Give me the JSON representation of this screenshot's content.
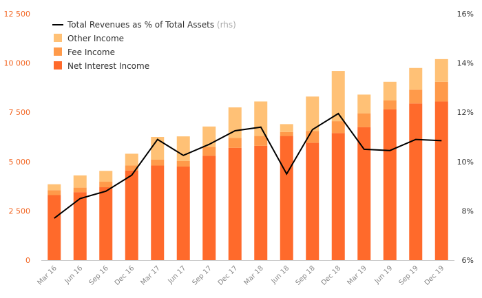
{
  "chart_data": {
    "type": "bar",
    "stacked": true,
    "categories": [
      "Mar 16",
      "Jun 16",
      "Sep 16",
      "Dec 16",
      "Mar 17",
      "Jun 17",
      "Sep 17",
      "Dec 17",
      "Mar 18",
      "Jun 18",
      "Sep 18",
      "Dec 18",
      "Mar 19",
      "Jun 19",
      "Sep 19",
      "Dec 19"
    ],
    "series": [
      {
        "name": "Net Interest Income",
        "color": "#ff6a2b",
        "values": [
          3300,
          3450,
          3700,
          4550,
          4800,
          4750,
          5300,
          5700,
          5800,
          6300,
          5950,
          6450,
          6750,
          7650,
          7950,
          8050
        ]
      },
      {
        "name": "Fee Income",
        "color": "#ff9a4a",
        "values": [
          250,
          230,
          280,
          250,
          300,
          280,
          450,
          500,
          500,
          200,
          600,
          600,
          700,
          450,
          700,
          1000
        ]
      },
      {
        "name": "Other Income",
        "color": "#ffc176",
        "values": [
          300,
          620,
          550,
          600,
          1150,
          1250,
          1030,
          1550,
          1750,
          400,
          1750,
          2550,
          950,
          950,
          1100,
          1150
        ]
      }
    ],
    "line_series": {
      "name": "Total Revenues as % of Total Assets",
      "axis": "rhs",
      "color": "#000000",
      "values": [
        7.7,
        8.5,
        8.8,
        9.45,
        10.9,
        10.25,
        10.7,
        11.25,
        11.4,
        9.5,
        11.3,
        11.95,
        10.5,
        10.45,
        10.9,
        10.85
      ]
    },
    "y_left": {
      "min": 0,
      "max": 12500,
      "ticks": [
        0,
        2500,
        5000,
        7500,
        10000,
        12500
      ],
      "tick_labels": [
        "0",
        "2 500",
        "5 000",
        "7 500",
        "10 000",
        "12 500"
      ]
    },
    "y_right": {
      "min": 6,
      "max": 16,
      "ticks": [
        6,
        8,
        10,
        12,
        14,
        16
      ],
      "tick_labels": [
        "6%",
        "8%",
        "10%",
        "12%",
        "14%",
        "16%"
      ]
    },
    "legend": {
      "line_label": "Total Revenues as % of Total Assets",
      "line_suffix": "(rhs)",
      "entries": [
        "Other Income",
        "Fee Income",
        "Net Interest Income"
      ],
      "placement": "top-left"
    },
    "grid": false
  }
}
